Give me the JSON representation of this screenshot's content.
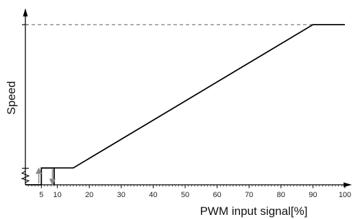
{
  "chart_data": {
    "type": "line",
    "title": "",
    "xlabel": "PWM input signal[%]",
    "ylabel": "Speed",
    "x_ticks": [
      5,
      10,
      20,
      30,
      40,
      50,
      60,
      70,
      80,
      90,
      100
    ],
    "x_tick_labels": [
      "5",
      "10",
      "20",
      "30",
      "40",
      "50",
      "60",
      "70",
      "80",
      "90",
      "100"
    ],
    "xlim": [
      0,
      100
    ],
    "ylim": [
      0,
      1
    ],
    "grid": false,
    "legend": "none",
    "series": [
      {
        "x": [
          0,
          5,
          5,
          15,
          90,
          100
        ],
        "y": [
          0,
          0,
          0.105,
          0.105,
          1,
          1
        ]
      }
    ],
    "hysteresis": {
      "on_threshold_x": 5,
      "off_threshold_x": 9,
      "low_y": 0,
      "high_y": 0.105
    },
    "max_speed_reference": {
      "y": 1,
      "from_x": 0,
      "to_x": 90
    }
  }
}
